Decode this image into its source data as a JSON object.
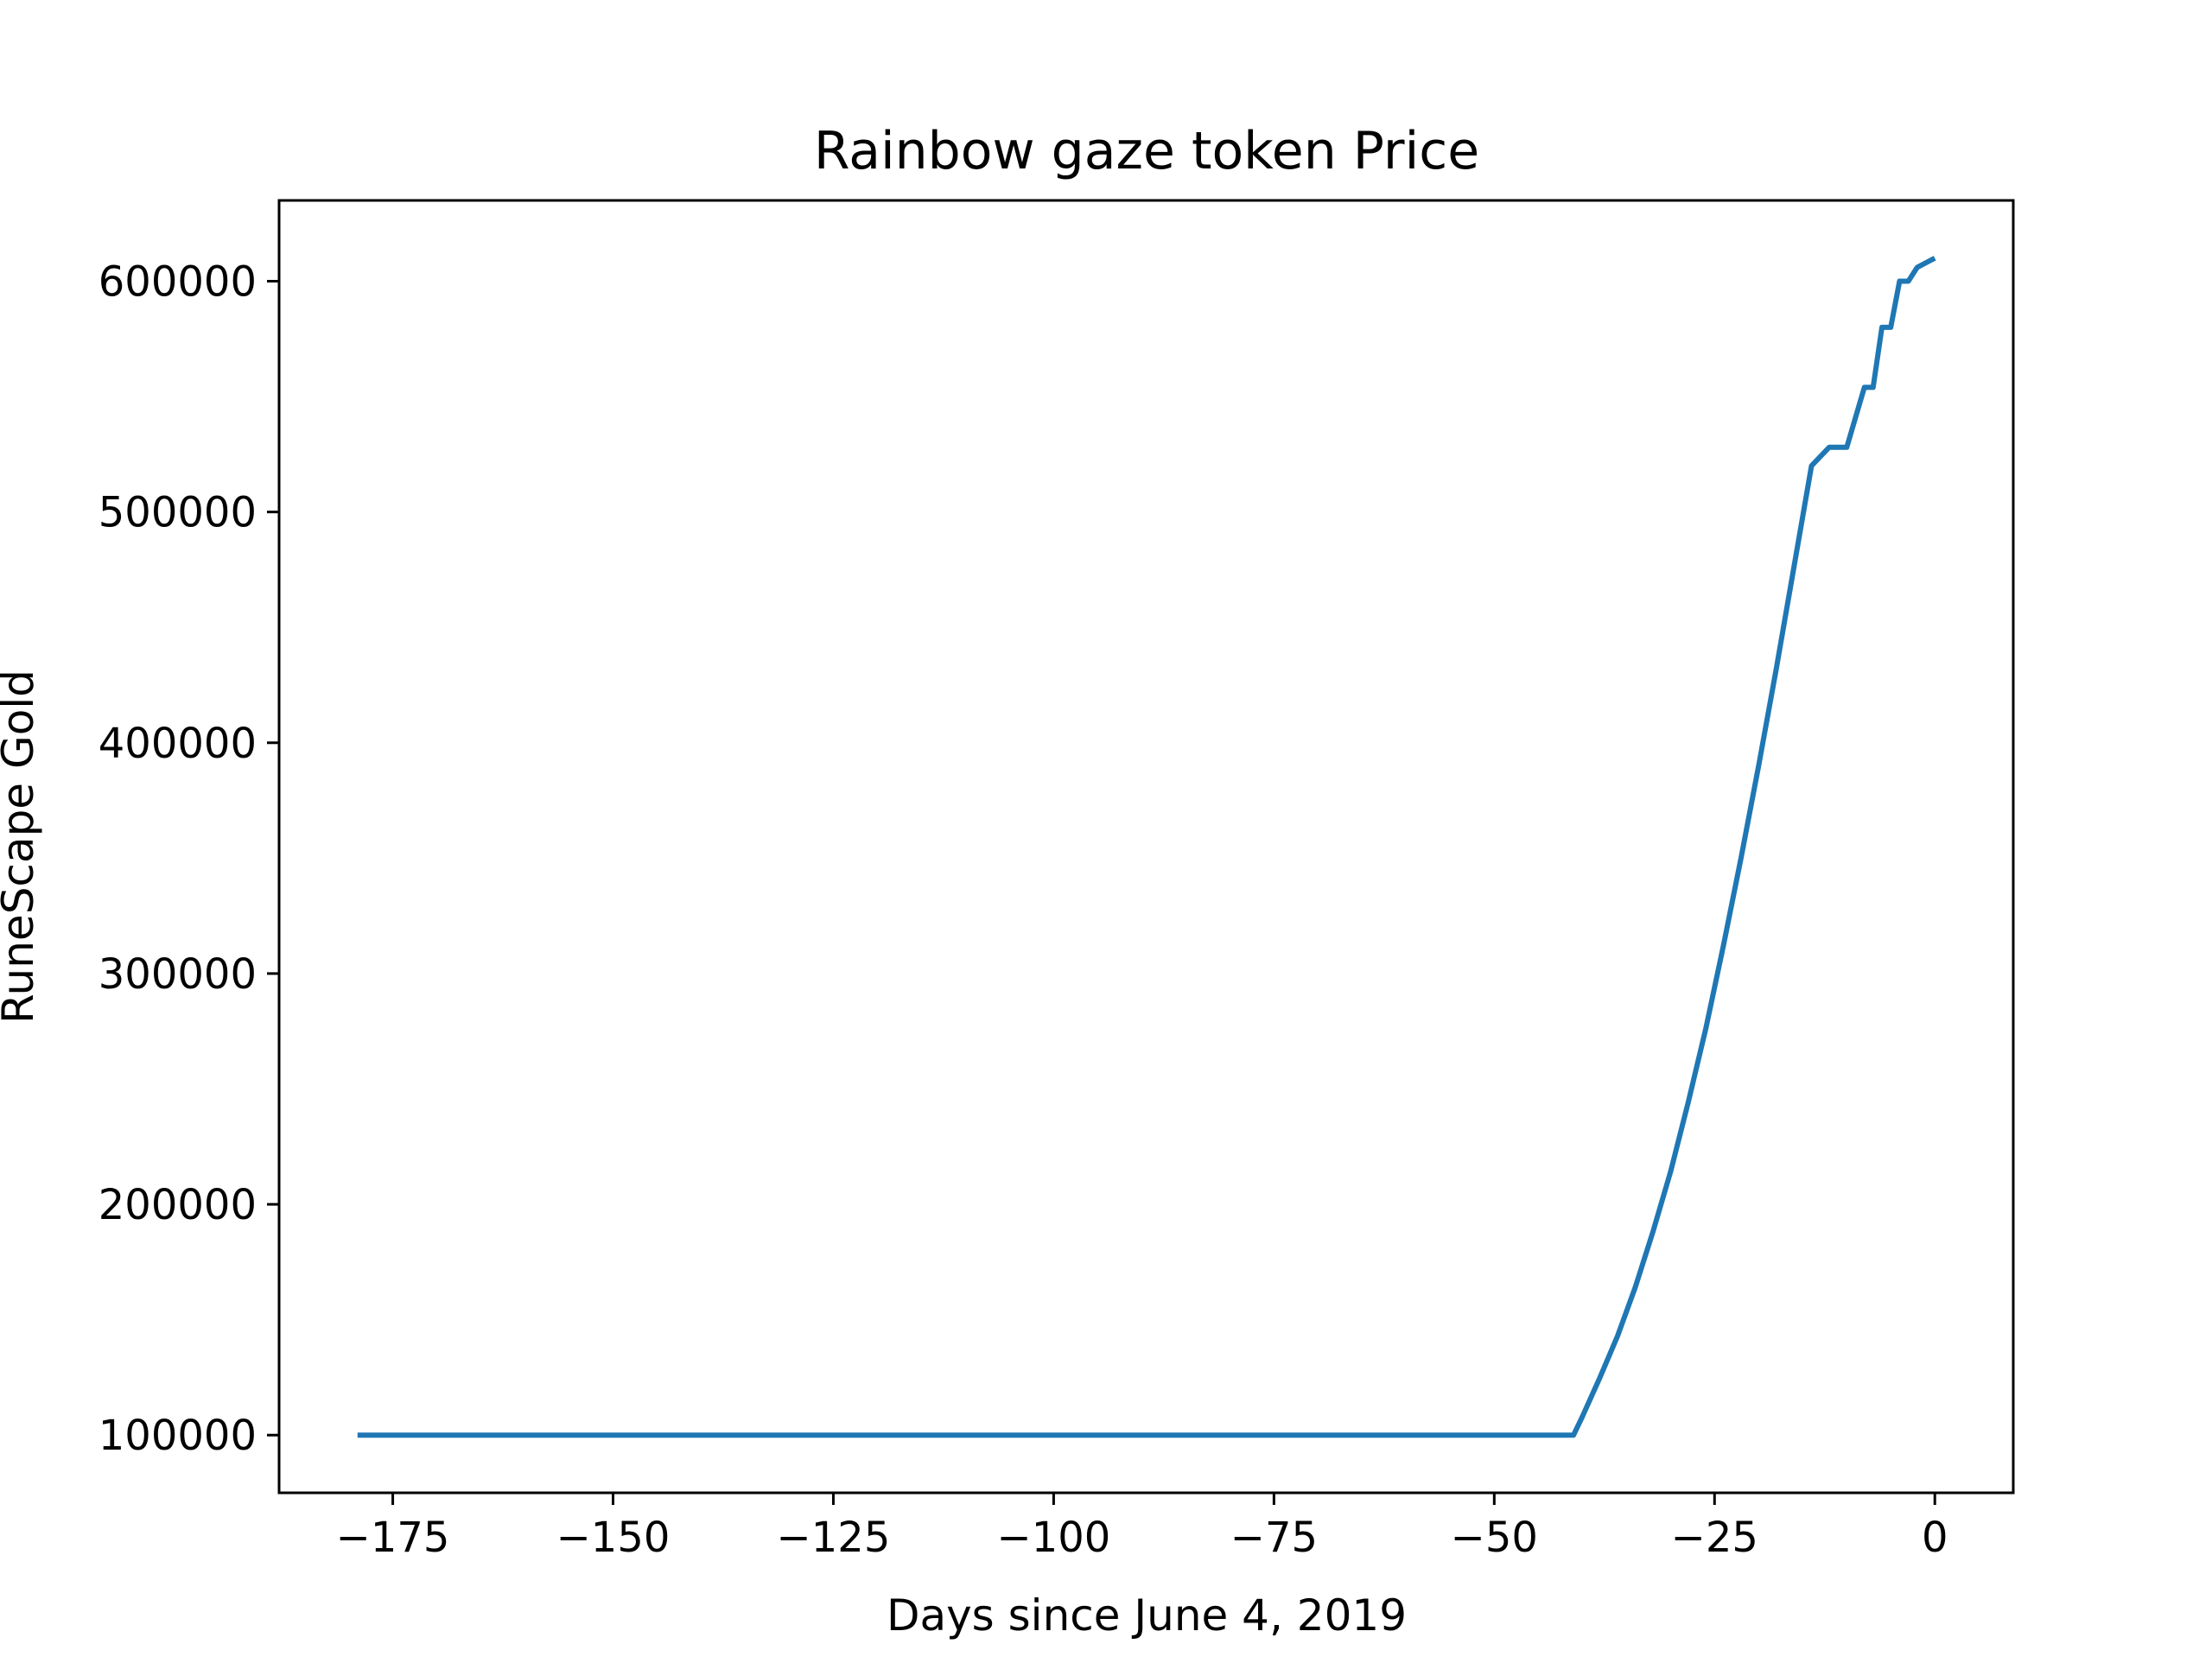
{
  "chart_data": {
    "type": "line",
    "title": "Rainbow gaze token Price",
    "xlabel": "Days since June 4, 2019",
    "ylabel": "RuneScape Gold",
    "xlim": [
      -187.9,
      8.9
    ],
    "ylim": [
      75000,
      635000
    ],
    "xticks": [
      -175,
      -150,
      -125,
      -100,
      -75,
      -50,
      -25,
      0
    ],
    "xtick_labels": [
      "−175",
      "−150",
      "−125",
      "−100",
      "−75",
      "−50",
      "−25",
      "0"
    ],
    "yticks": [
      100000,
      200000,
      300000,
      400000,
      500000,
      600000
    ],
    "ytick_labels": [
      "100000",
      "200000",
      "300000",
      "400000",
      "500000",
      "600000"
    ],
    "grid": false,
    "series": [
      {
        "color": "#1f77b4",
        "x": [
          -179,
          -41,
          -40,
          -38,
          -36,
          -34,
          -32,
          -30,
          -28,
          -26,
          -24,
          -22,
          -20,
          -18,
          -16,
          -14,
          -12,
          -10,
          -8,
          -7,
          -6,
          -5,
          -4,
          -3,
          -2,
          -1,
          0
        ],
        "y": [
          100000,
          100000,
          108000,
          125000,
          143000,
          164000,
          188000,
          214000,
          244000,
          276000,
          312000,
          350000,
          390000,
          432000,
          476000,
          520000,
          528000,
          528000,
          554000,
          554000,
          580000,
          580000,
          600000,
          600000,
          606000,
          608000,
          610000
        ]
      }
    ]
  }
}
